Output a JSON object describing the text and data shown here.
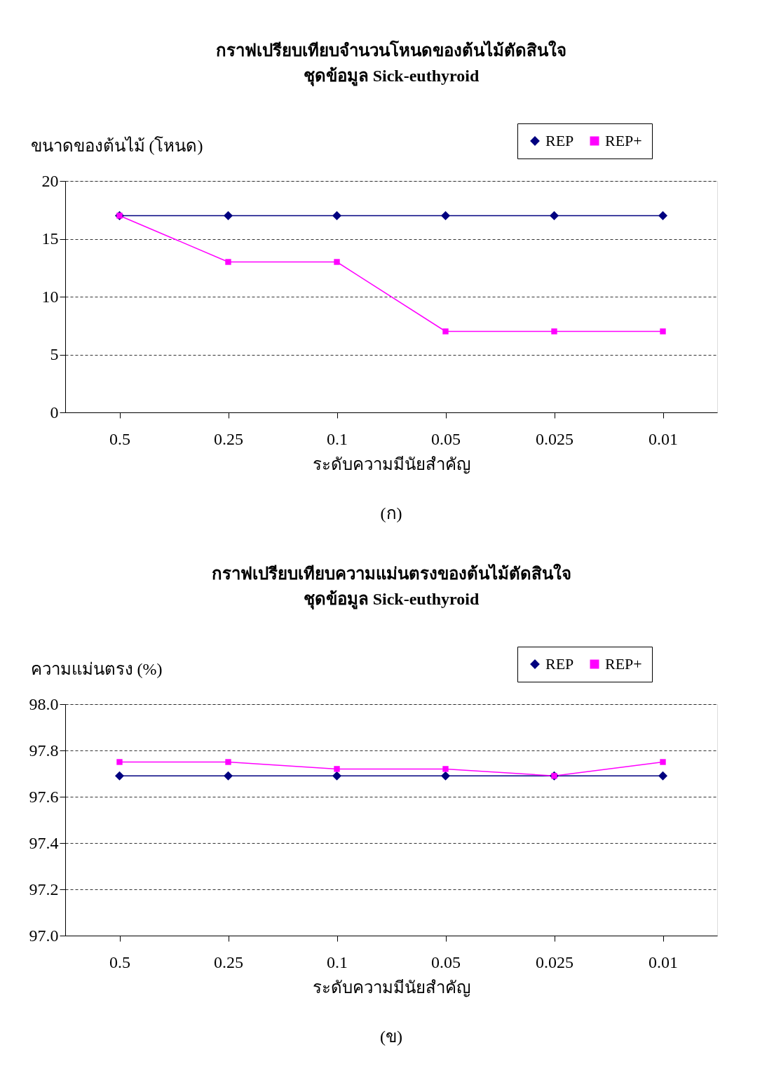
{
  "chart_data": [
    {
      "type": "line",
      "title": "กราฟเปรียบเทียบจำนวนโหนดของต้นไม้ตัดสินใจ",
      "subtitle": "ชุดข้อมูล Sick-euthyroid",
      "xlabel": "ระดับความมีนัยสำคัญ",
      "ylabel": "ขนาดของต้นไม้ (โหนด)",
      "categories": [
        "0.5",
        "0.25",
        "0.1",
        "0.05",
        "0.025",
        "0.01"
      ],
      "series": [
        {
          "name": "REP",
          "color": "#000080",
          "marker": "diamond",
          "values": [
            17,
            17,
            17,
            17,
            17,
            17
          ]
        },
        {
          "name": "REP+",
          "color": "#ff00ff",
          "marker": "square",
          "values": [
            17,
            13,
            13,
            7,
            7,
            7
          ]
        }
      ],
      "ylim": [
        0,
        20
      ],
      "yticks": [
        0,
        5,
        10,
        15,
        20
      ],
      "grid": "y",
      "legend": "top right",
      "line_style": "solid",
      "annotations": [
        "(ก)"
      ]
    },
    {
      "type": "line",
      "title": "กราฟเปรียบเทียบความแม่นตรงของต้นไม้ตัดสินใจ",
      "subtitle": "ชุดข้อมูล Sick-euthyroid",
      "xlabel": "ระดับความมีนัยสำคัญ",
      "ylabel": "ความแม่นตรง (%)",
      "categories": [
        "0.5",
        "0.25",
        "0.1",
        "0.05",
        "0.025",
        "0.01"
      ],
      "series": [
        {
          "name": "REP",
          "color": "#000080",
          "marker": "diamond",
          "values": [
            97.69,
            97.69,
            97.69,
            97.69,
            97.69,
            97.69
          ]
        },
        {
          "name": "REP+",
          "color": "#ff00ff",
          "marker": "square",
          "values": [
            97.75,
            97.75,
            97.72,
            97.72,
            97.69,
            97.75
          ]
        }
      ],
      "ylim": [
        97.0,
        98.0
      ],
      "yticks": [
        {
          "value": 97.0,
          "label": "97.0"
        },
        {
          "value": 97.2,
          "label": "97.2"
        },
        {
          "value": 97.4,
          "label": "97.4"
        },
        {
          "value": 97.6,
          "label": "97.6"
        },
        {
          "value": 97.8,
          "label": "97.8"
        },
        {
          "value": 98.0,
          "label": "98.0"
        }
      ],
      "grid": "y",
      "legend": "top right",
      "line_style": "solid",
      "annotations": [
        "(ข)"
      ]
    }
  ]
}
